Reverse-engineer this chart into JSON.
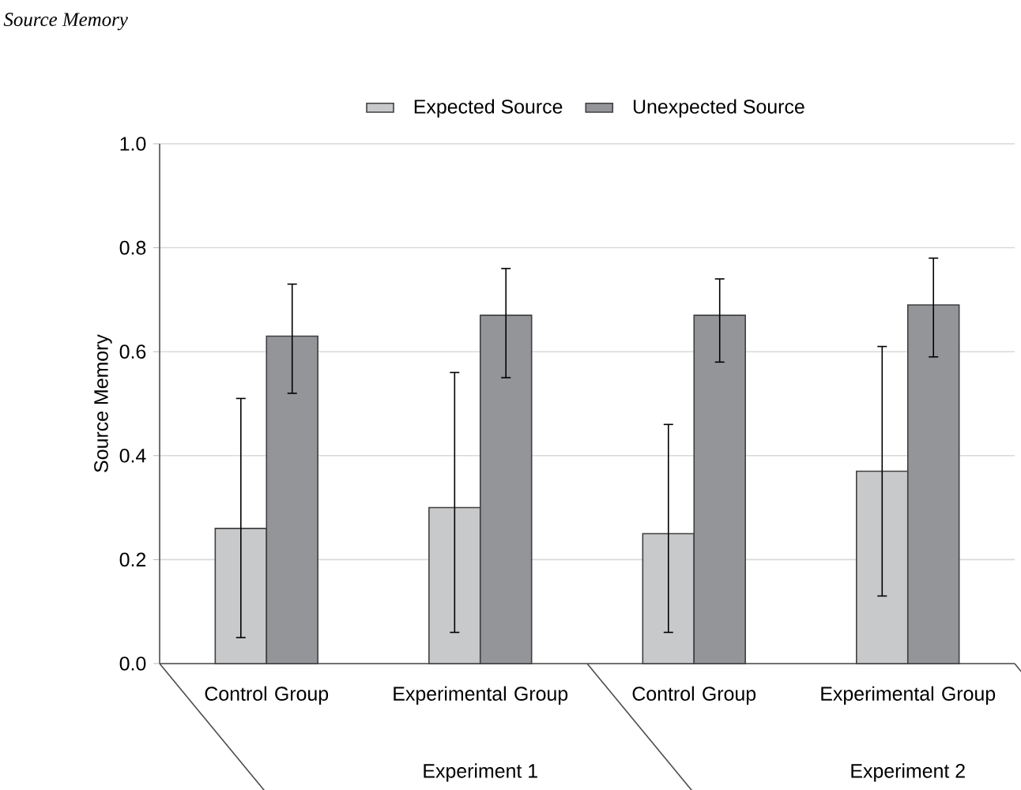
{
  "chart_data": {
    "type": "bar",
    "title": "Source Memory",
    "ylabel": "Source Memory",
    "categories": [
      "Control Group",
      "Experimental Group",
      "Control Group",
      "Experimental Group"
    ],
    "annotations": [
      "Experiment 1",
      "Experiment 2"
    ],
    "series": [
      {
        "name": "Expected Source",
        "color": "#c8c9ca",
        "values": [
          0.26,
          0.3,
          0.25,
          0.37
        ],
        "errors": [
          [
            0.05,
            0.51
          ],
          [
            0.06,
            0.56
          ],
          [
            0.06,
            0.46
          ],
          [
            0.13,
            0.61
          ]
        ]
      },
      {
        "name": "Unexpected Source",
        "color": "#939598",
        "values": [
          0.63,
          0.67,
          0.67,
          0.69
        ],
        "errors": [
          [
            0.52,
            0.73
          ],
          [
            0.55,
            0.76
          ],
          [
            0.58,
            0.74
          ],
          [
            0.59,
            0.78
          ]
        ]
      }
    ],
    "ylim": [
      0,
      1
    ],
    "yticks": [
      {
        "value": 0,
        "label": "0.0"
      },
      {
        "value": 0.2,
        "label": "0.2"
      },
      {
        "value": 0.4,
        "label": "0.4"
      },
      {
        "value": 0.6,
        "label": "0.6"
      },
      {
        "value": 0.8,
        "label": "0.8"
      },
      {
        "value": 1,
        "label": "1.0"
      }
    ],
    "grid": "y",
    "legend": "top"
  }
}
